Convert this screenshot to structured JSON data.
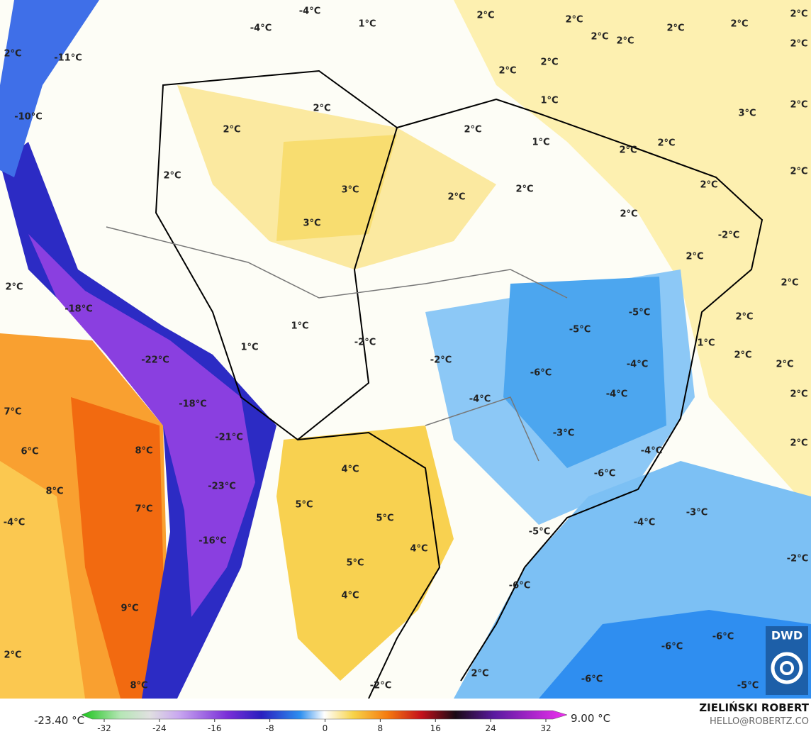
{
  "map": {
    "labels": [
      "-4°C",
      "-4°C",
      "1°C",
      "2°C",
      "2°C",
      "2°C",
      "2°C",
      "2°C",
      "2°C",
      "2°C",
      "2°C",
      "2°C",
      "-11°C",
      "2°C",
      "2°C",
      "1°C",
      "2°C",
      "3°C",
      "2°C",
      "-10°C",
      "2°C",
      "2°C",
      "1°C",
      "2°C",
      "2°C",
      "2°C",
      "2°C",
      "3°C",
      "2°C",
      "2°C",
      "2°C",
      "2°C",
      "-2°C",
      "3°C",
      "2°C",
      "2°C",
      "2°C",
      "-18°C",
      "-5°C",
      "-5°C",
      "1°C",
      "2°C",
      "-2°C",
      "1°C",
      "1°C",
      "2°C",
      "2°C",
      "-22°C",
      "-2°C",
      "-4°C",
      "-6°C",
      "2°C",
      "-4°C",
      "-4°C",
      "-18°C",
      "7°C",
      "-3°C",
      "-21°C",
      "2°C",
      "6°C",
      "8°C",
      "-4°C",
      "4°C",
      "-6°C",
      "8°C",
      "-23°C",
      "7°C",
      "5°C",
      "5°C",
      "-4°C",
      "-4°C",
      "-3°C",
      "-5°C",
      "4°C",
      "-16°C",
      "5°C",
      "-2°C",
      "-6°C",
      "4°C",
      "9°C",
      "-6°C",
      "-6°C",
      "2°C",
      "-6°C",
      "2°C",
      "-5°C",
      "-2°C",
      "8°C"
    ],
    "colorbar": {
      "min_label": "-23.40 °C",
      "max_label": "9.00 °C",
      "ticks": [
        -32,
        -24,
        -16,
        -8,
        0,
        8,
        16,
        24,
        32
      ]
    },
    "author": "ZIELIŃSKI ROBERT",
    "contact": "HELLO@ROBERTZ.CO",
    "logo": "DWD"
  }
}
